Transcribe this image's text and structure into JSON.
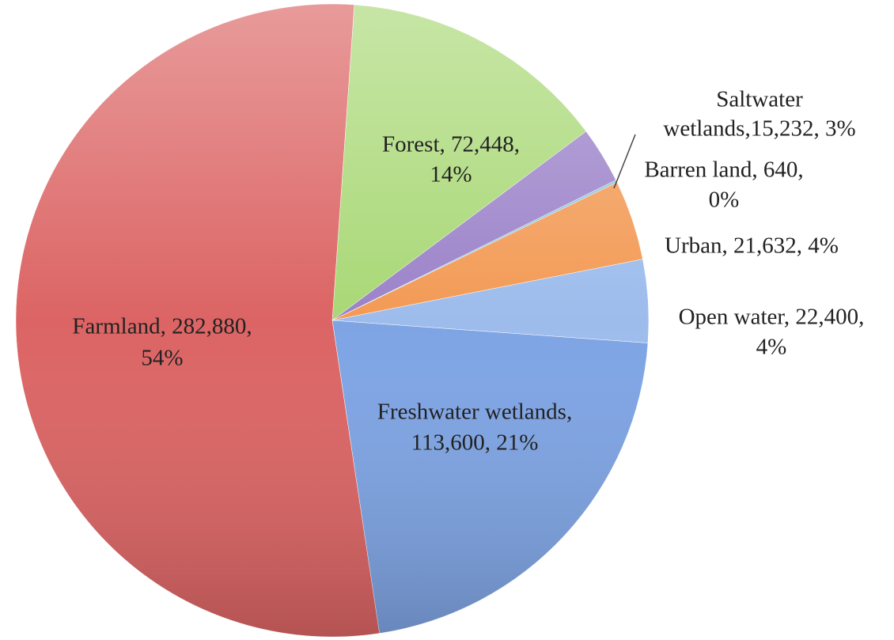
{
  "chart_data": {
    "type": "pie",
    "values": [
      72448,
      15232,
      640,
      21632,
      22400,
      113600,
      282880
    ],
    "value_labels": [
      [
        "Forest, 72,448,",
        "14%"
      ],
      [
        "Saltwater",
        "wetlands,15,232, 3%"
      ],
      [
        "Barren land, 640,",
        "0%"
      ],
      [
        "Urban, 21,632, 4%"
      ],
      [
        "Open water, 22,400,",
        "4%"
      ],
      [
        "Freshwater wetlands,",
        "113,600, 21%"
      ],
      [
        "Farmland, 282,880,",
        "54%"
      ]
    ],
    "colors": [
      "#a9d876",
      "#9b82c9",
      "#86c3dd",
      "#f39a55",
      "#9dbcec",
      "#7ea4e4",
      "#dc6464"
    ]
  }
}
